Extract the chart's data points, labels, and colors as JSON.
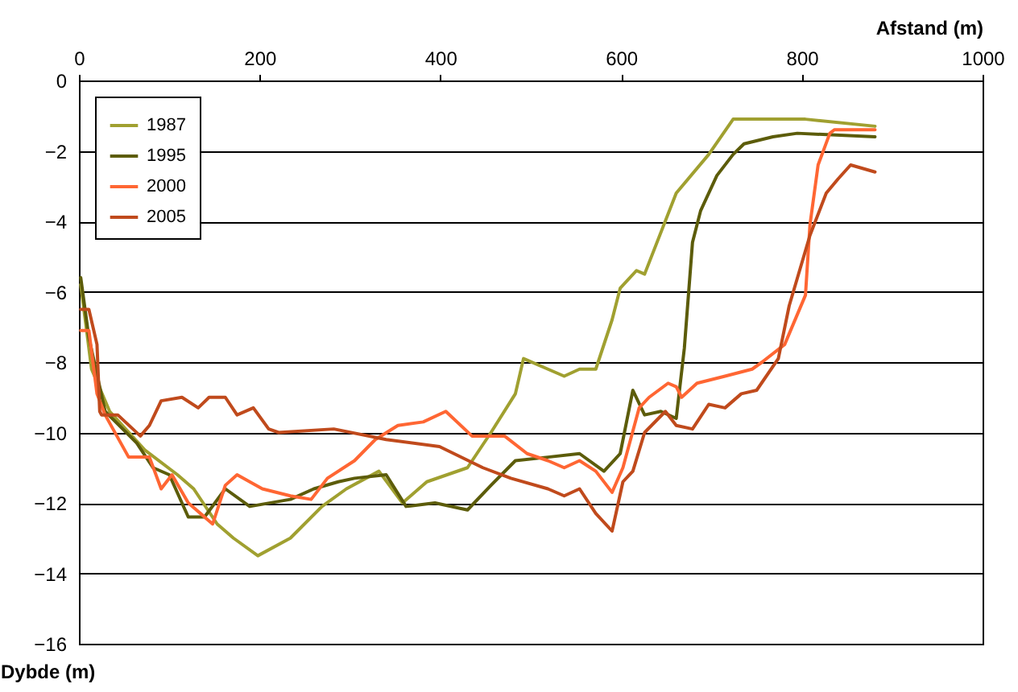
{
  "chart_data": {
    "type": "line",
    "xlabel": "Afstand (m)",
    "ylabel": "Dybde (m)",
    "xlim": [
      0,
      1000
    ],
    "xticks": [
      0,
      200,
      400,
      600,
      800,
      1000
    ],
    "ylim": [
      -16,
      0
    ],
    "yticks": [
      -16,
      -14,
      -12,
      -10,
      -8,
      -6,
      -4,
      -2,
      0
    ],
    "grid": "y",
    "legend": "top left",
    "line_style": "solid",
    "marker": "none",
    "series": [
      {
        "name": "1987",
        "color": "#a0a030",
        "x": [
          2,
          14,
          34,
          73,
          109,
          127,
          153,
          171,
          198,
          234,
          269,
          296,
          332,
          358,
          385,
          430,
          456,
          483,
          492,
          519,
          537,
          554,
          572,
          590,
          599,
          617,
          626,
          661,
          697,
          724,
          750,
          804,
          881
        ],
        "values": [
          -5.8,
          -8.2,
          -9.4,
          -10.5,
          -11.2,
          -11.6,
          -12.6,
          -13,
          -13.5,
          -13,
          -12.1,
          -11.6,
          -11.1,
          -12,
          -11.4,
          -11,
          -10,
          -8.9,
          -7.9,
          -8.2,
          -8.4,
          -8.2,
          -8.2,
          -6.8,
          -5.9,
          -5.4,
          -5.5,
          -3.2,
          -2.1,
          -1.1,
          -1.1,
          -1.1,
          -1.3
        ]
      },
      {
        "name": "1995",
        "color": "#5c5c0a",
        "x": [
          2,
          11,
          29,
          64,
          82,
          100,
          121,
          139,
          162,
          189,
          234,
          260,
          287,
          305,
          340,
          362,
          394,
          430,
          456,
          483,
          519,
          554,
          581,
          599,
          613,
          626,
          644,
          661,
          670,
          679,
          688,
          706,
          724,
          736,
          768,
          795,
          881
        ],
        "values": [
          -5.6,
          -7.3,
          -9.4,
          -10.3,
          -11,
          -11.2,
          -12.4,
          -12.4,
          -11.6,
          -12.1,
          -11.9,
          -11.6,
          -11.4,
          -11.3,
          -11.2,
          -12.1,
          -12,
          -12.2,
          -11.5,
          -10.8,
          -10.7,
          -10.6,
          -11.1,
          -10.6,
          -8.8,
          -9.5,
          -9.4,
          -9.6,
          -7.6,
          -4.6,
          -3.7,
          -2.7,
          -2.1,
          -1.8,
          -1.6,
          -1.5,
          -1.6
        ]
      },
      {
        "name": "2000",
        "color": "#ff6633",
        "x": [
          2,
          11,
          20,
          29,
          55,
          78,
          91,
          103,
          121,
          148,
          162,
          175,
          203,
          234,
          257,
          275,
          305,
          328,
          353,
          381,
          406,
          435,
          471,
          496,
          519,
          537,
          554,
          572,
          590,
          602,
          620,
          631,
          652,
          661,
          667,
          684,
          715,
          745,
          756,
          781,
          804,
          809,
          818,
          831,
          836,
          881
        ],
        "values": [
          -7.1,
          -7.1,
          -8.9,
          -9.5,
          -10.7,
          -10.7,
          -11.6,
          -11.2,
          -12,
          -12.6,
          -11.5,
          -11.2,
          -11.6,
          -11.8,
          -11.9,
          -11.3,
          -10.8,
          -10.2,
          -9.8,
          -9.7,
          -9.4,
          -10.1,
          -10.1,
          -10.6,
          -10.8,
          -11,
          -10.8,
          -11.1,
          -11.7,
          -11,
          -9.3,
          -9,
          -8.6,
          -8.7,
          -9,
          -8.6,
          -8.4,
          -8.2,
          -8,
          -7.5,
          -6.1,
          -4.1,
          -2.4,
          -1.5,
          -1.4,
          -1.4
        ]
      },
      {
        "name": "2005",
        "color": "#c04a1c",
        "x": [
          2,
          11,
          20,
          23,
          25,
          43,
          68,
          78,
          91,
          114,
          132,
          144,
          162,
          175,
          193,
          210,
          221,
          282,
          340,
          399,
          447,
          478,
          519,
          537,
          554,
          572,
          590,
          602,
          613,
          626,
          649,
          661,
          679,
          697,
          715,
          733,
          750,
          774,
          786,
          809,
          827,
          840,
          854,
          881
        ],
        "values": [
          -6.5,
          -6.5,
          -7.5,
          -9.4,
          -9.5,
          -9.5,
          -10.1,
          -9.8,
          -9.1,
          -9,
          -9.3,
          -9,
          -9,
          -9.5,
          -9.3,
          -9.9,
          -10,
          -9.9,
          -10.2,
          -10.4,
          -11,
          -11.3,
          -11.6,
          -11.8,
          -11.6,
          -12.3,
          -12.8,
          -11.4,
          -11.1,
          -10,
          -9.4,
          -9.8,
          -9.9,
          -9.2,
          -9.3,
          -8.9,
          -8.8,
          -7.9,
          -6.4,
          -4.4,
          -3.2,
          -2.8,
          -2.4,
          -2.6
        ]
      }
    ]
  }
}
